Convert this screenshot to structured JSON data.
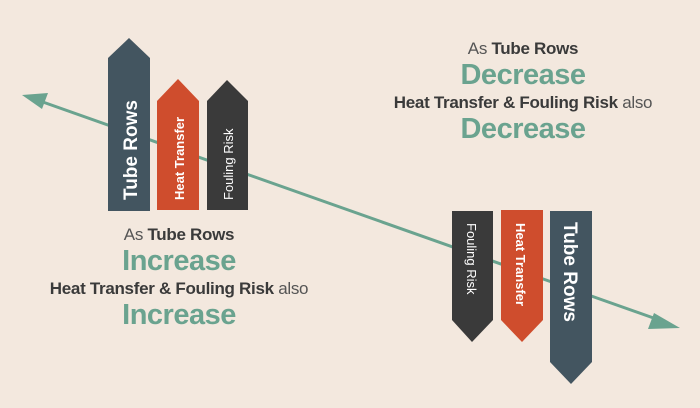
{
  "colors": {
    "background": "#f3e8de",
    "tube_rows": "#435560",
    "heat_transfer": "#cf4d2d",
    "fouling_risk": "#3a3a3a",
    "accent": "#6aa38f"
  },
  "increase": {
    "arrow_labels": [
      "Tube Rows",
      "Heat Transfer",
      "Fouling Risk"
    ],
    "line1_prefix": "As",
    "line1_bold": "Tube Rows",
    "verb": "Increase",
    "line2_bold": "Heat Transfer & Fouling Risk",
    "line2_suffix": "also",
    "verb2": "Increase"
  },
  "decrease": {
    "arrow_labels": [
      "Fouling Risk",
      "Heat Transfer",
      "Tube Rows"
    ],
    "line1_prefix": "As",
    "line1_bold": "Tube Rows",
    "verb": "Decrease",
    "line2_bold": "Heat Transfer & Fouling Risk",
    "line2_suffix": "also",
    "verb2": "Decrease"
  }
}
